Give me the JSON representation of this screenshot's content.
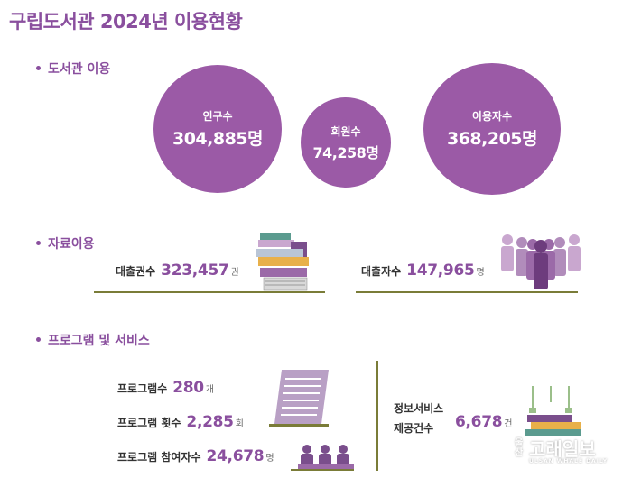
{
  "title": "구립도서관 2024년 이용현황",
  "sections": {
    "library_use": "도서관 이용",
    "material_use": "자료이용",
    "programs": "프로그램 및 서비스"
  },
  "circles": {
    "population": {
      "label": "인구수",
      "value": "304,885명"
    },
    "members": {
      "label": "회원수",
      "value": "74,258명"
    },
    "users": {
      "label": "이용자수",
      "value": "368,205명"
    }
  },
  "materials": {
    "loans": {
      "label": "대출권수",
      "value": "323,457",
      "unit": "권"
    },
    "borrowers": {
      "label": "대출자수",
      "value": "147,965",
      "unit": "명"
    }
  },
  "programs": {
    "count": {
      "label": "프로그램수",
      "value": "280",
      "unit": "개"
    },
    "sessions": {
      "label": "프로그램 횟수",
      "value": "2,285",
      "unit": "회"
    },
    "participants": {
      "label": "프로그램 참여자수",
      "value": "24,678",
      "unit": "명"
    }
  },
  "info_service": {
    "label_line1": "정보서비스",
    "label_line2": "제공건수",
    "value": "6,678",
    "unit": "건"
  },
  "watermark": {
    "small": "울산",
    "main": "고래일보",
    "sub": "ULSAN WHALE DAILY"
  },
  "colors": {
    "accent": "#9b5aa6",
    "text_accent": "#8a4f9e",
    "line": "#7a7c38"
  },
  "icons": [
    "books-stack-icon",
    "people-group-icon",
    "document-icon",
    "audience-icon",
    "books-icon"
  ]
}
